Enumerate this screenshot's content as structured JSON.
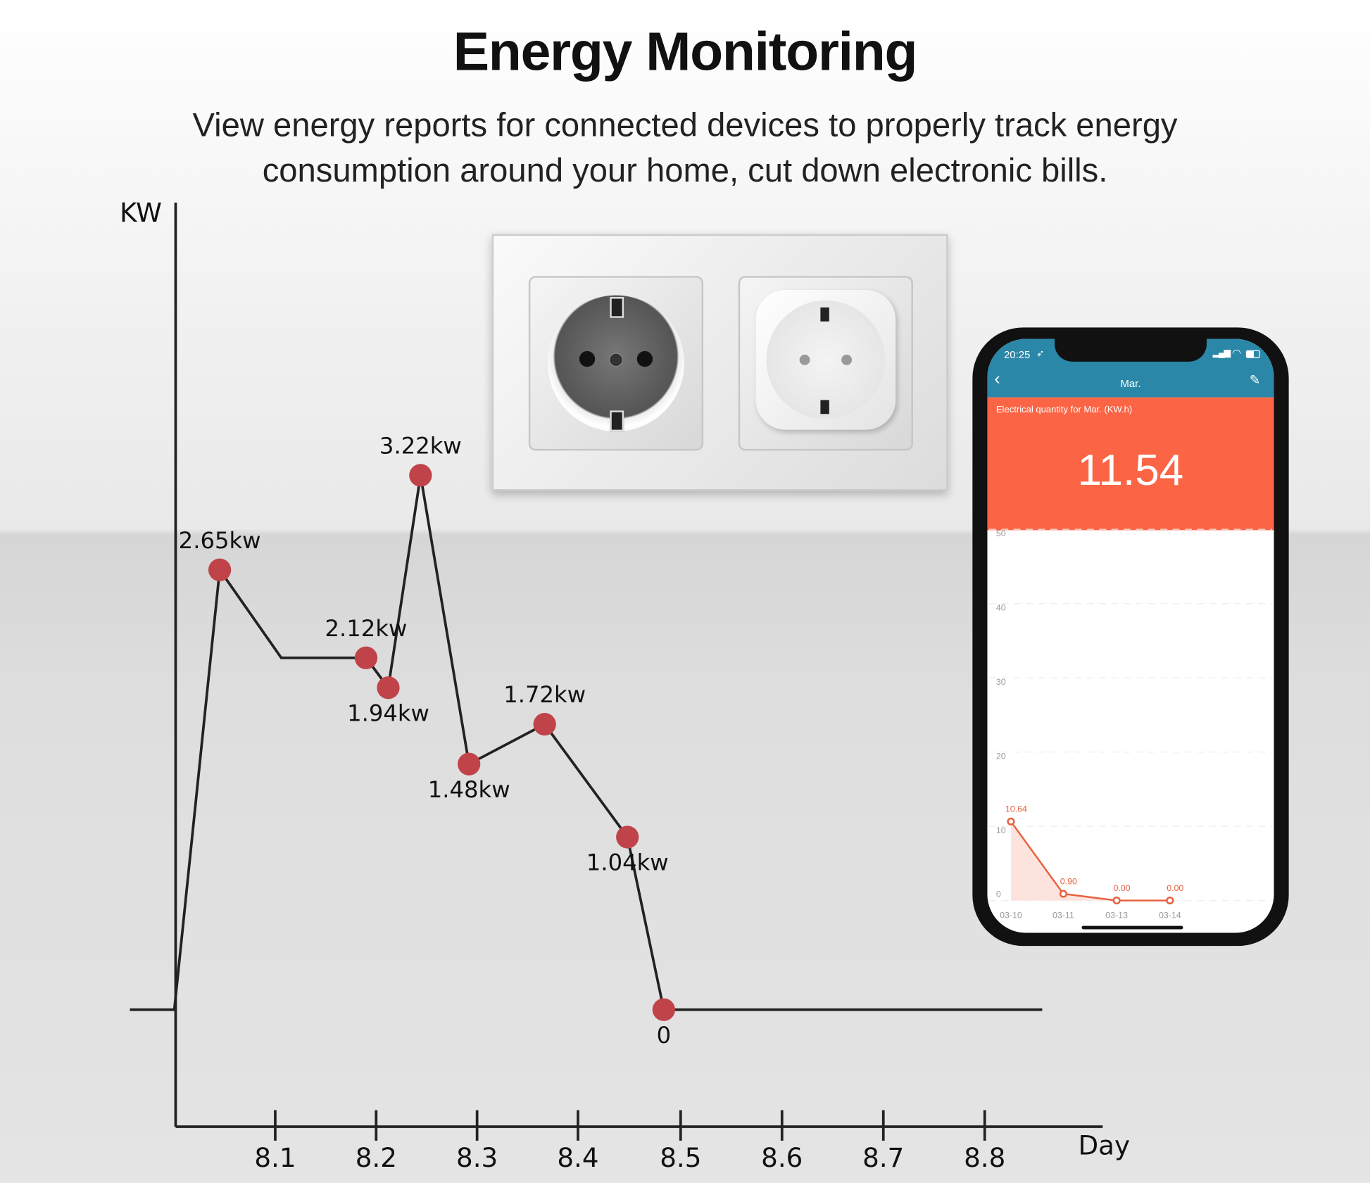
{
  "header": {
    "title": "Energy Monitoring",
    "subtitle": "View energy reports for connected devices to properly track energy consumption around your  home, cut down electronic bills."
  },
  "chart_data": {
    "type": "line",
    "ylabel": "KW",
    "xlabel": "Day",
    "x_ticks": [
      "8.1",
      "8.2",
      "8.3",
      "8.4",
      "8.5",
      "8.6",
      "8.7",
      "8.8"
    ],
    "points": [
      {
        "x": 8.045,
        "y": 2.65,
        "label": "2.65kw",
        "label_pos": "above"
      },
      {
        "x": 8.19,
        "y": 2.12,
        "label": "2.12kw",
        "label_pos": "above"
      },
      {
        "x": 8.212,
        "y": 1.94,
        "label": "1.94kw",
        "label_pos": "below"
      },
      {
        "x": 8.244,
        "y": 3.22,
        "label": "3.22kw",
        "label_pos": "above"
      },
      {
        "x": 8.292,
        "y": 1.48,
        "label": "1.48kw",
        "label_pos": "below"
      },
      {
        "x": 8.367,
        "y": 1.72,
        "label": "1.72kw",
        "label_pos": "above"
      },
      {
        "x": 8.449,
        "y": 1.04,
        "label": "1.04kw",
        "label_pos": "below"
      },
      {
        "x": 8.485,
        "y": 0,
        "label": "0",
        "label_pos": "below"
      }
    ],
    "line": [
      [
        7.956,
        0
      ],
      [
        8.0,
        0
      ],
      [
        8.045,
        2.65
      ],
      [
        8.106,
        2.12
      ],
      [
        8.19,
        2.12
      ],
      [
        8.212,
        1.94
      ],
      [
        8.244,
        3.22
      ],
      [
        8.292,
        1.48
      ],
      [
        8.367,
        1.72
      ],
      [
        8.449,
        1.04
      ],
      [
        8.485,
        0
      ],
      [
        8.86,
        0
      ]
    ],
    "colors": {
      "line": "#222222",
      "marker": "#c0434a"
    }
  },
  "phone": {
    "time": "20:25",
    "nav_title": "Mar.",
    "summary_label": "Electrical quantity for Mar. (KW.h)",
    "total": "11.54",
    "icons": [
      "back-chevron-icon",
      "edit-icon",
      "location-arrow-icon",
      "signal-icon",
      "wifi-icon",
      "battery-icon"
    ],
    "colors": {
      "header": "#2b87a8",
      "summary": "#fb6444",
      "series": "#e8603f"
    },
    "chart": {
      "y_ticks": [
        "0",
        "10",
        "20",
        "30",
        "40",
        "50"
      ],
      "ylim": [
        0,
        50
      ],
      "dates": [
        "03-10",
        "03-11",
        "03-13",
        "03-14"
      ],
      "values": [
        10.64,
        0.9,
        0.0,
        0.0
      ],
      "value_labels": [
        "10.64",
        "0.90",
        "0.00",
        "0.00"
      ]
    }
  }
}
